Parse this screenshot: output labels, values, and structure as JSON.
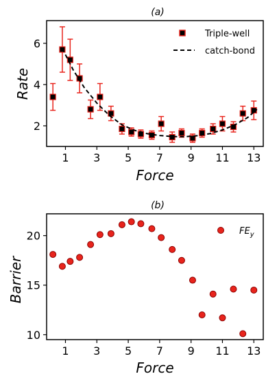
{
  "chart_data": [
    {
      "type": "scatter",
      "title": "(a)",
      "xlabel": "Force",
      "ylabel": "Rate",
      "xticks": [
        "1",
        "3",
        "5",
        "7",
        "9",
        "11",
        "13"
      ],
      "yticks": [
        "2",
        "4",
        "6"
      ],
      "xlim": [
        -0.2,
        13.6
      ],
      "ylim": [
        1.0,
        7.1
      ],
      "legend_position": "top-right",
      "series": [
        {
          "name": "Triple-well",
          "marker": "square",
          "color": "#000000",
          "error_color": "#e8241c",
          "x": [
            0.2,
            0.8,
            1.3,
            1.9,
            2.6,
            3.2,
            3.9,
            4.6,
            5.2,
            5.8,
            6.5,
            7.1,
            7.8,
            8.4,
            9.1,
            9.7,
            10.4,
            11.0,
            11.7,
            12.3,
            13.0
          ],
          "y": [
            3.4,
            5.7,
            5.2,
            4.3,
            2.8,
            3.4,
            2.6,
            1.85,
            1.7,
            1.6,
            1.55,
            2.1,
            1.45,
            1.65,
            1.4,
            1.65,
            1.85,
            2.1,
            1.95,
            2.6,
            2.75
          ],
          "error": [
            0.65,
            1.1,
            1.0,
            0.7,
            0.45,
            0.65,
            0.35,
            0.25,
            0.2,
            0.2,
            0.2,
            0.35,
            0.25,
            0.2,
            0.2,
            0.2,
            0.25,
            0.35,
            0.25,
            0.35,
            0.45
          ]
        },
        {
          "name": "catch-bond",
          "style": "dashed",
          "color": "#000000",
          "x": [
            0.8,
            1.5,
            2.2,
            3.0,
            3.8,
            4.6,
            5.4,
            6.2,
            7.0,
            7.8,
            8.6,
            9.4,
            10.2,
            11.0,
            11.8,
            12.6,
            13.2
          ],
          "y": [
            5.75,
            4.7,
            3.85,
            3.1,
            2.5,
            2.05,
            1.78,
            1.62,
            1.53,
            1.48,
            1.47,
            1.52,
            1.62,
            1.8,
            2.05,
            2.4,
            2.8
          ]
        }
      ]
    },
    {
      "type": "scatter",
      "title": "(b)",
      "xlabel": "Force",
      "ylabel": "Barrier",
      "xticks": [
        "1",
        "3",
        "5",
        "7",
        "9",
        "11",
        "13"
      ],
      "yticks": [
        "10",
        "15",
        "20"
      ],
      "xlim": [
        -0.2,
        13.6
      ],
      "ylim": [
        9.5,
        22.2
      ],
      "legend_position": "top-right",
      "series": [
        {
          "name": "FE",
          "name_subscript": "y",
          "marker": "circle",
          "color": "#e8241c",
          "x": [
            0.2,
            0.8,
            1.3,
            1.9,
            2.6,
            3.2,
            3.9,
            4.6,
            5.2,
            5.8,
            6.5,
            7.1,
            7.8,
            8.4,
            9.1,
            9.7,
            10.4,
            11.0,
            11.7,
            12.3,
            13.0
          ],
          "y": [
            18.1,
            16.9,
            17.4,
            17.8,
            19.1,
            20.1,
            20.2,
            21.1,
            21.4,
            21.2,
            20.7,
            19.8,
            18.6,
            17.5,
            15.5,
            12.0,
            14.1,
            11.7,
            14.6,
            10.1,
            14.5
          ]
        }
      ]
    }
  ]
}
